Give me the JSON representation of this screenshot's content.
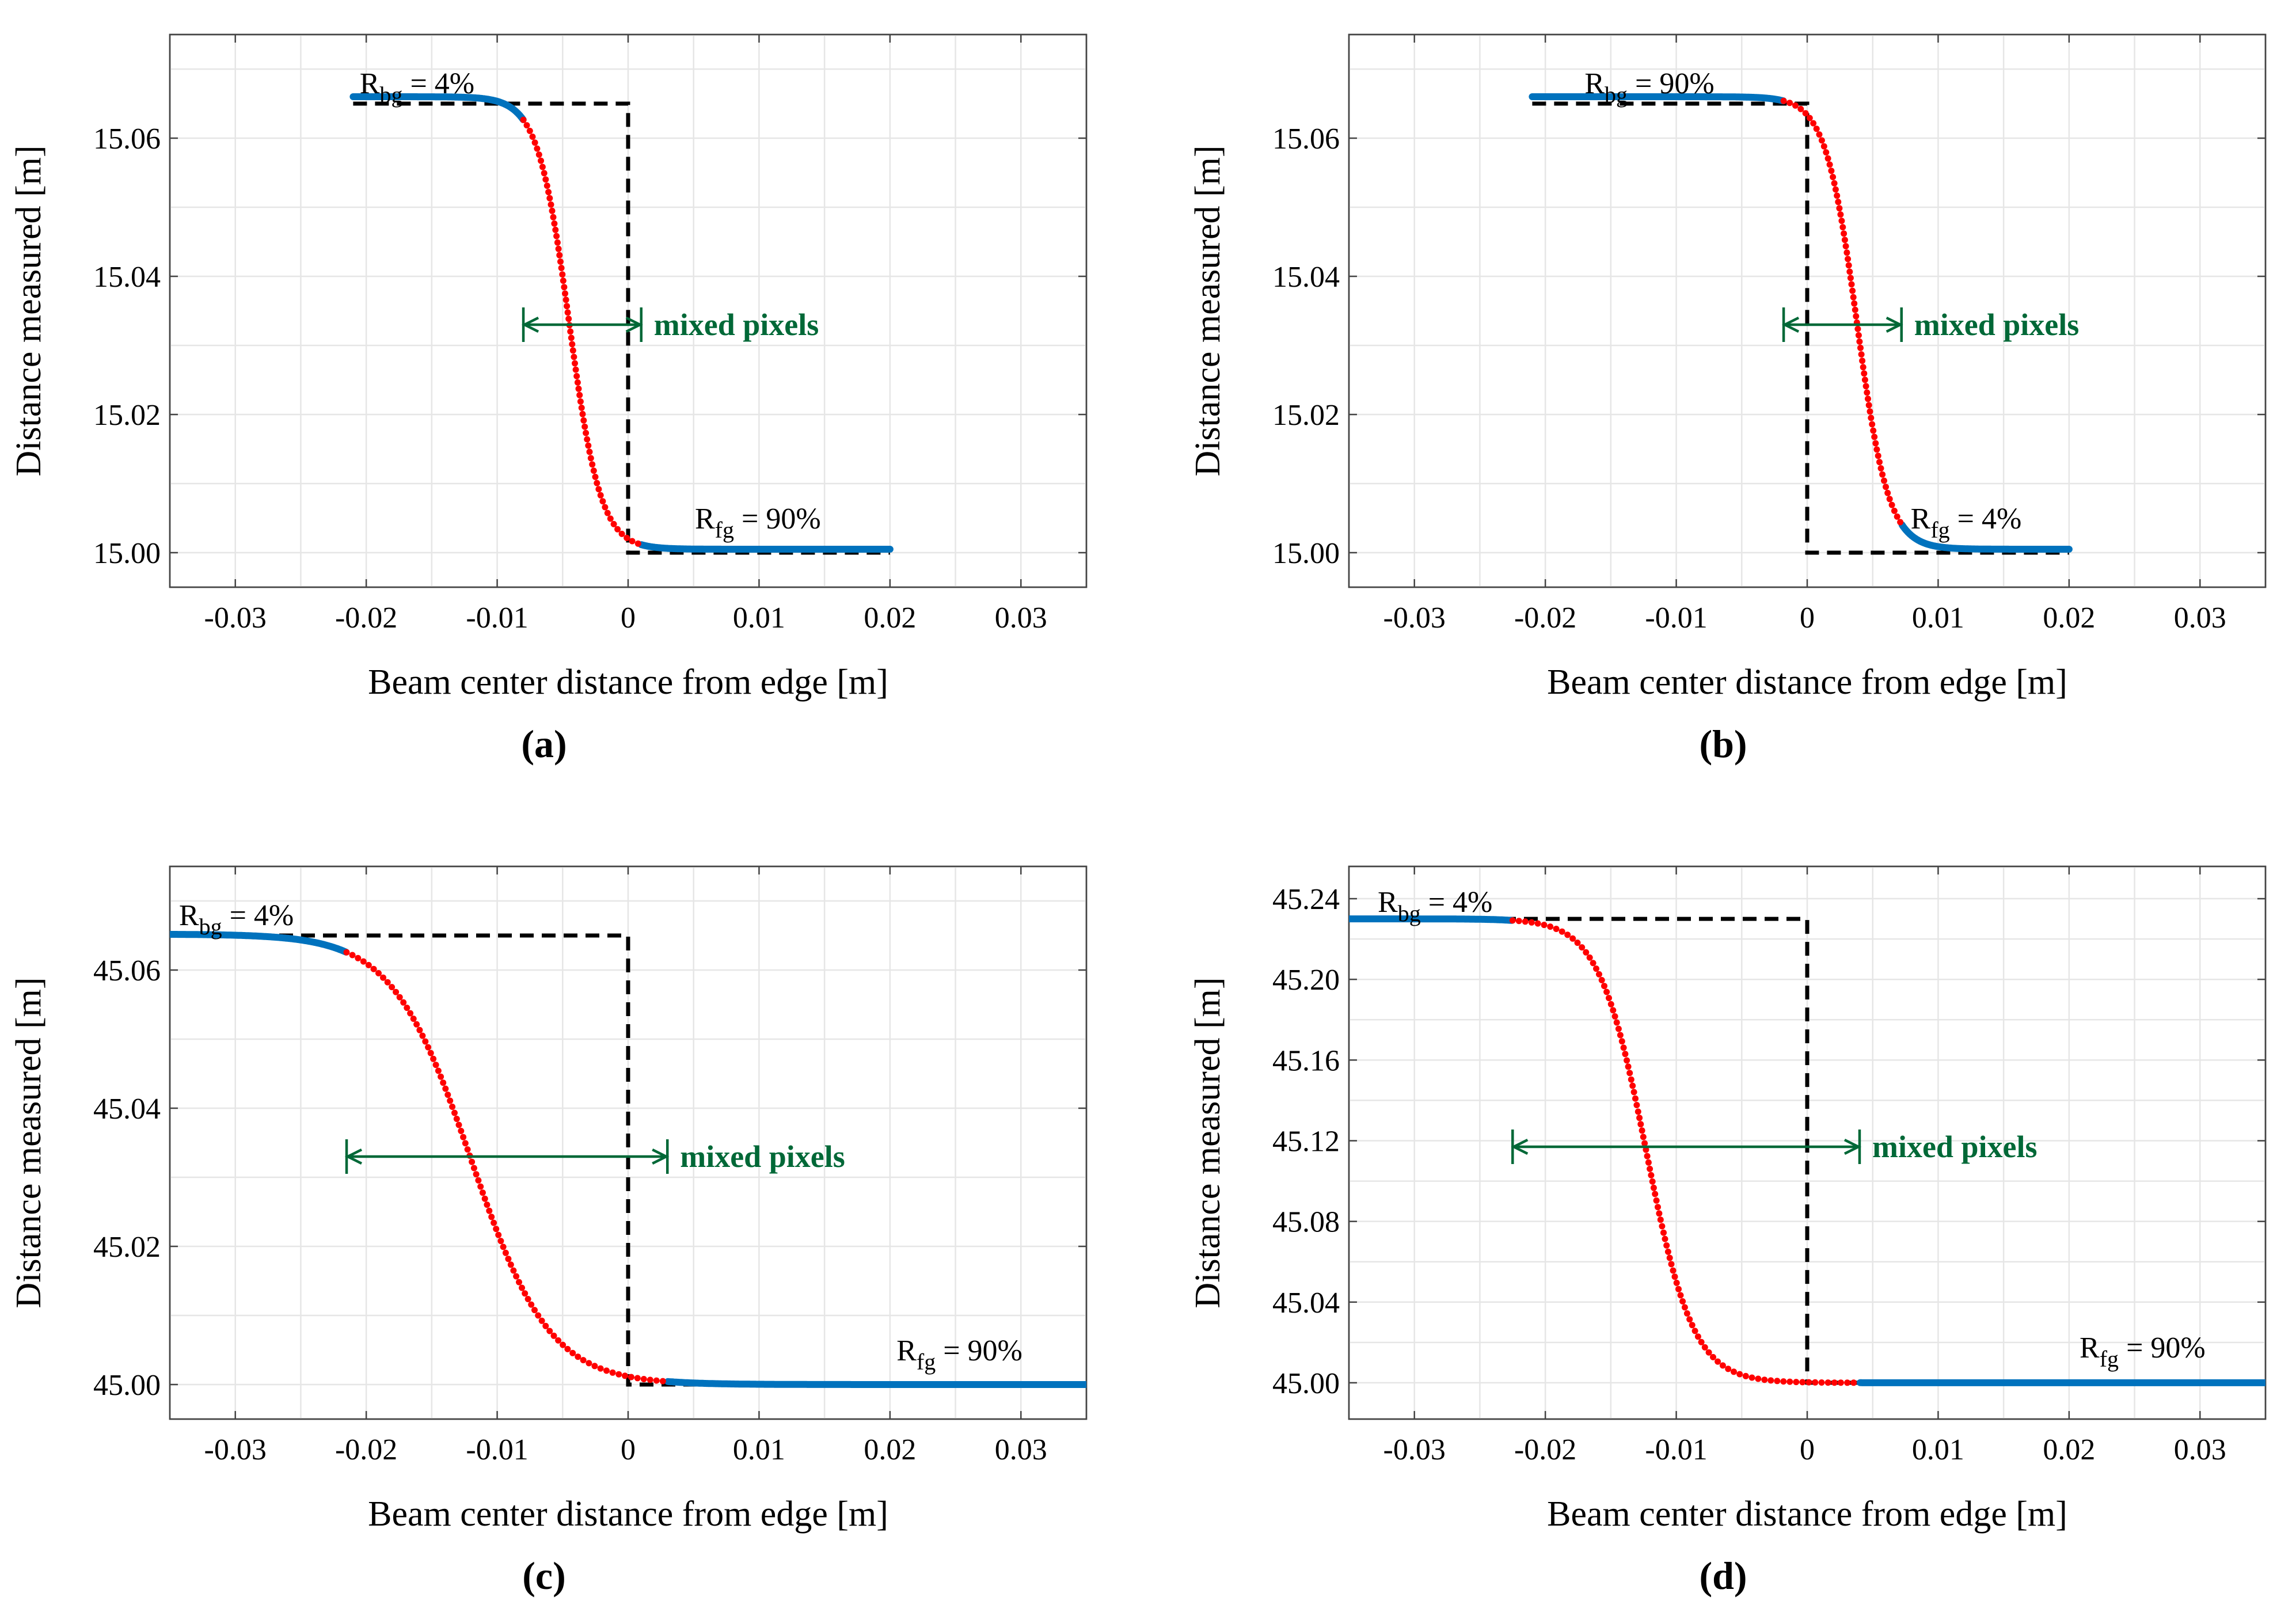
{
  "figure": {
    "colors": {
      "ideal": "#000000",
      "pure_pixels": "#0072BD",
      "mixed_pixels": "#FF0000",
      "annotation": "#006837",
      "grid": "#E6E6E6",
      "frame": "#444444"
    }
  },
  "chart_data": [
    {
      "panel_label": "(a)",
      "type": "scatter",
      "xlabel": "Beam center distance from edge [m]",
      "ylabel": "Distance measured [m]",
      "xlim": [
        -0.035,
        0.035
      ],
      "ylim": [
        14.995,
        15.075
      ],
      "xticks": [
        -0.03,
        -0.02,
        -0.01,
        0,
        0.01,
        0.02,
        0.03
      ],
      "xtick_labels": [
        "-0.03",
        "-0.02",
        "-0.01",
        "0",
        "0.01",
        "0.02",
        "0.03"
      ],
      "yticks": [
        15.0,
        15.02,
        15.04,
        15.06
      ],
      "ytick_labels": [
        "15.00",
        "15.02",
        "15.04",
        "15.06"
      ],
      "grid": true,
      "series": [
        {
          "name": "ideal edge step",
          "style": "dashed-line",
          "x": [
            -0.021,
            0,
            0,
            0.02
          ],
          "y": [
            15.065,
            15.065,
            15.0,
            15.0
          ]
        },
        {
          "name": "measured distance",
          "style": "points",
          "model": "logistic",
          "x_from": -0.021,
          "x_to": 0.02,
          "y_bg": 15.066,
          "y_fg": 15.0005,
          "center": -0.0045,
          "width": 0.0012,
          "mixed_range": [
            -0.008,
            0.001
          ]
        }
      ],
      "annotations": {
        "background": {
          "base": "R",
          "sub": "bg",
          "text": " = 4%",
          "x": -0.0205,
          "y": 15.0665
        },
        "foreground": {
          "base": "R",
          "sub": "fg",
          "text": " = 90%",
          "x": 0.0051,
          "y": 15.0035
        },
        "mixed": {
          "label": "mixed pixels",
          "from": -0.008,
          "to": 0.001,
          "y": 15.033
        }
      }
    },
    {
      "panel_label": "(b)",
      "type": "scatter",
      "xlabel": "Beam center distance from edge [m]",
      "ylabel": "Distance measured [m]",
      "xlim": [
        -0.035,
        0.035
      ],
      "ylim": [
        14.995,
        15.075
      ],
      "xticks": [
        -0.03,
        -0.02,
        -0.01,
        0,
        0.01,
        0.02,
        0.03
      ],
      "xtick_labels": [
        "-0.03",
        "-0.02",
        "-0.01",
        "0",
        "0.01",
        "0.02",
        "0.03"
      ],
      "yticks": [
        15.0,
        15.02,
        15.04,
        15.06
      ],
      "ytick_labels": [
        "15.00",
        "15.02",
        "15.04",
        "15.06"
      ],
      "grid": true,
      "series": [
        {
          "name": "ideal edge step",
          "style": "dashed-line",
          "x": [
            -0.021,
            0,
            0,
            0.02
          ],
          "y": [
            15.065,
            15.065,
            15.0,
            15.0
          ]
        },
        {
          "name": "measured distance",
          "style": "points",
          "model": "logistic",
          "x_from": -0.021,
          "x_to": 0.02,
          "y_bg": 15.066,
          "y_fg": 15.0005,
          "center": 0.0038,
          "width": 0.0012,
          "mixed_range": [
            -0.0018,
            0.0072
          ]
        }
      ],
      "annotations": {
        "background": {
          "base": "R",
          "sub": "bg",
          "text": " = 90%",
          "x": -0.017,
          "y": 15.0665
        },
        "foreground": {
          "base": "R",
          "sub": "fg",
          "text": " = 4%",
          "x": 0.0079,
          "y": 15.0035
        },
        "mixed": {
          "label": "mixed pixels",
          "from": -0.0018,
          "to": 0.0072,
          "y": 15.033
        }
      }
    },
    {
      "panel_label": "(c)",
      "type": "scatter",
      "xlabel": "Beam center distance from edge [m]",
      "ylabel": "Distance measured [m]",
      "xlim": [
        -0.035,
        0.035
      ],
      "ylim": [
        44.995,
        45.075
      ],
      "xticks": [
        -0.03,
        -0.02,
        -0.01,
        0,
        0.01,
        0.02,
        0.03
      ],
      "xtick_labels": [
        "-0.03",
        "-0.02",
        "-0.01",
        "0",
        "0.01",
        "0.02",
        "0.03"
      ],
      "yticks": [
        45.0,
        45.02,
        45.04,
        45.06
      ],
      "ytick_labels": [
        "45.00",
        "45.02",
        "45.04",
        "45.06"
      ],
      "grid": true,
      "series": [
        {
          "name": "ideal edge step",
          "style": "dashed-line",
          "x": [
            -0.035,
            0,
            0,
            0.035
          ],
          "y": [
            45.065,
            45.065,
            45.0,
            45.0
          ]
        },
        {
          "name": "measured distance",
          "style": "points",
          "model": "logistic",
          "x_from": -0.035,
          "x_to": 0.035,
          "y_bg": 45.0652,
          "y_fg": 45.0,
          "center": -0.012,
          "width": 0.003,
          "mixed_range": [
            -0.0215,
            0.003
          ]
        }
      ],
      "annotations": {
        "background": {
          "base": "R",
          "sub": "bg",
          "text": " = 4%",
          "x": -0.0343,
          "y": 45.0665
        },
        "foreground": {
          "base": "R",
          "sub": "fg",
          "text": " = 90%",
          "x": 0.0205,
          "y": 45.0035
        },
        "mixed": {
          "label": "mixed pixels",
          "from": -0.0215,
          "to": 0.003,
          "y": 45.033
        }
      }
    },
    {
      "panel_label": "(d)",
      "type": "scatter",
      "xlabel": "Beam center distance from edge [m]",
      "ylabel": "Distance measured [m]",
      "xlim": [
        -0.035,
        0.035
      ],
      "ylim": [
        44.982,
        45.256
      ],
      "xticks": [
        -0.03,
        -0.02,
        -0.01,
        0,
        0.01,
        0.02,
        0.03
      ],
      "xtick_labels": [
        "-0.03",
        "-0.02",
        "-0.01",
        "0",
        "0.01",
        "0.02",
        "0.03"
      ],
      "yticks": [
        45.0,
        45.04,
        45.08,
        45.12,
        45.16,
        45.2,
        45.24
      ],
      "ytick_labels": [
        "45.00",
        "45.04",
        "45.08",
        "45.12",
        "45.16",
        "45.20",
        "45.24"
      ],
      "grid": true,
      "series": [
        {
          "name": "ideal edge step",
          "style": "dashed-line",
          "x": [
            -0.035,
            0,
            0,
            0.035
          ],
          "y": [
            45.23,
            45.23,
            45.0,
            45.0
          ]
        },
        {
          "name": "measured distance",
          "style": "points",
          "model": "logistic",
          "x_from": -0.035,
          "x_to": 0.035,
          "y_bg": 45.23,
          "y_fg": 45.0,
          "center": -0.0123,
          "width": 0.0018,
          "mixed_range": [
            -0.0225,
            0.004
          ]
        }
      ],
      "annotations": {
        "background": {
          "base": "R",
          "sub": "bg",
          "text": " = 4%",
          "x": -0.0328,
          "y": 45.2335
        },
        "foreground": {
          "base": "R",
          "sub": "fg",
          "text": " = 90%",
          "x": 0.0208,
          "y": 45.0125
        },
        "mixed": {
          "label": "mixed pixels",
          "from": -0.0225,
          "to": 0.004,
          "y": 45.117
        }
      }
    }
  ]
}
